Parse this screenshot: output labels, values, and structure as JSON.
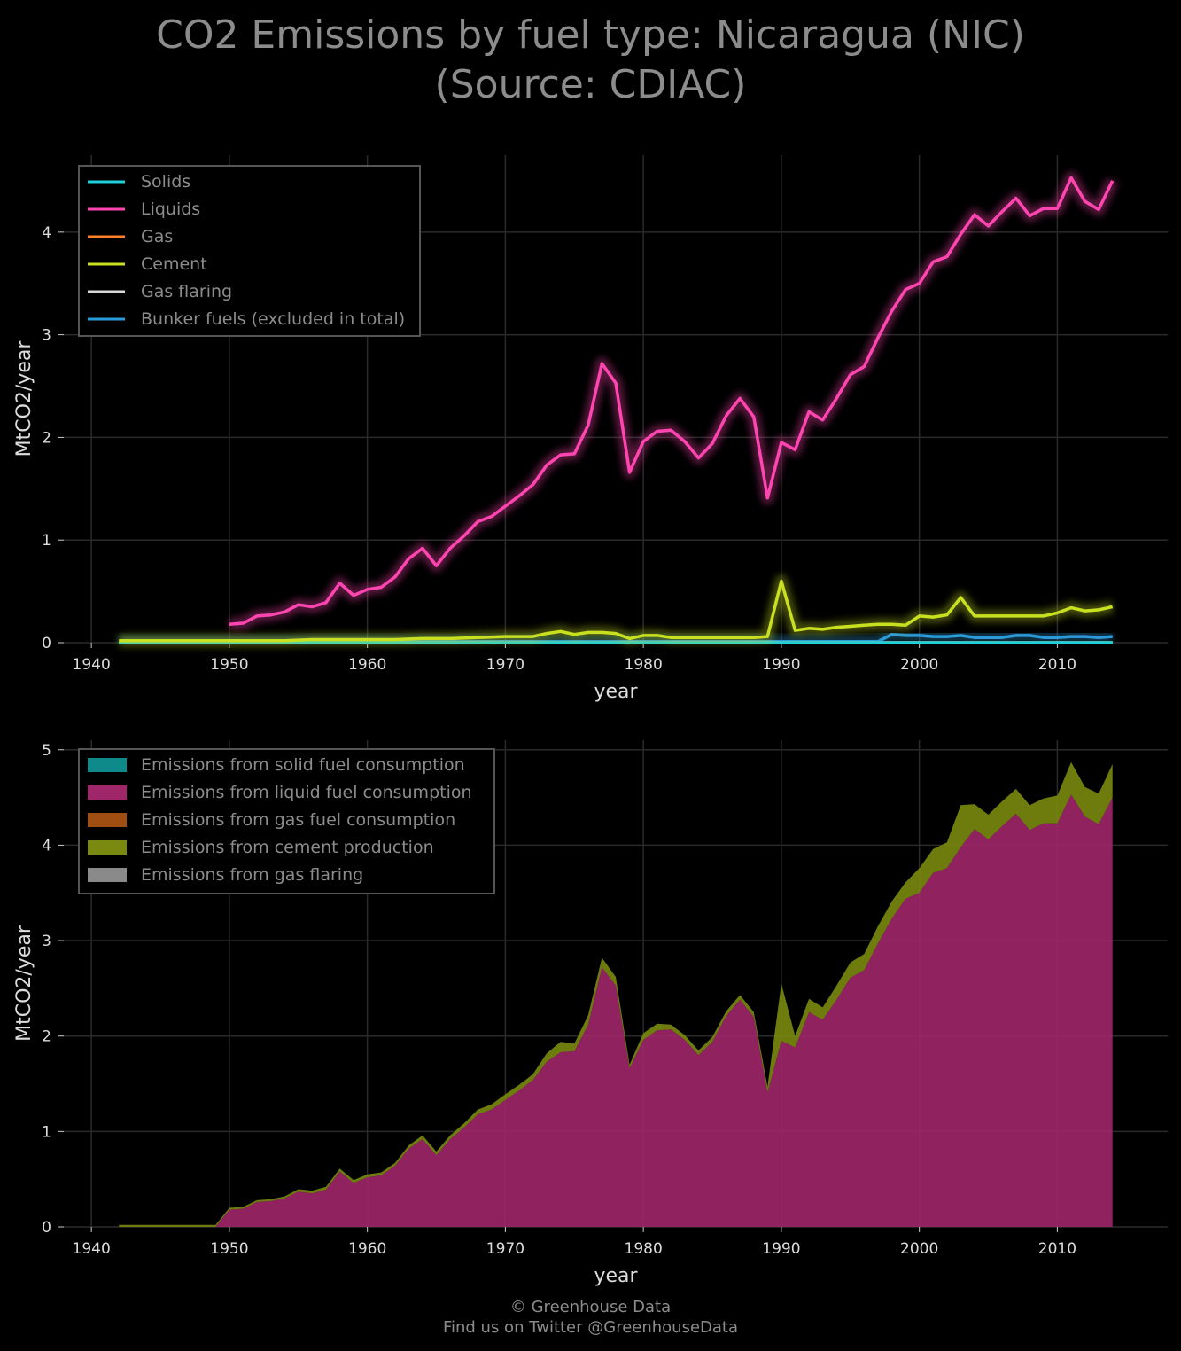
{
  "title": {
    "line1": "CO2 Emissions by fuel type: Nicaragua (NIC)",
    "line2": "(Source: CDIAC)"
  },
  "footer": {
    "line1": "© Greenhouse Data",
    "line2": "Find us on Twitter @GreenhouseData"
  },
  "colors": {
    "background": "#000000",
    "grid": "#2a2a2a",
    "solids": "#20d0d8",
    "liquids": "#ff45b0",
    "gas": "#ff7f2a",
    "cement": "#c8e020",
    "gas_flaring": "#d8d8d8",
    "bunker": "#2a9ad8",
    "area_solid": "#0e8a8a",
    "area_liquid": "#a0266a",
    "area_gas": "#a04e12",
    "area_cement": "#7a8a10",
    "area_flaring": "#8a8a8a"
  },
  "chart_data": [
    {
      "type": "line",
      "xlabel": "year",
      "ylabel": "MtCO2/year",
      "xlim": [
        1938,
        2018
      ],
      "ylim": [
        0,
        4.75
      ],
      "xticks": [
        1940,
        1950,
        1960,
        1970,
        1980,
        1990,
        2000,
        2010
      ],
      "yticks": [
        0,
        1,
        2,
        3,
        4
      ],
      "grid": true,
      "legend_position": "top-left",
      "series": [
        {
          "name": "Solids",
          "color_key": "solids",
          "x": [
            1942,
            1950,
            1960,
            1970,
            1980,
            1990,
            2000,
            2010,
            2014
          ],
          "values": [
            0.0,
            0.0,
            0.0,
            0.0,
            0.0,
            0.0,
            0.0,
            0.0,
            0.0
          ]
        },
        {
          "name": "Liquids",
          "color_key": "liquids",
          "x": [
            1950,
            1951,
            1952,
            1953,
            1954,
            1955,
            1956,
            1957,
            1958,
            1959,
            1960,
            1961,
            1962,
            1963,
            1964,
            1965,
            1966,
            1967,
            1968,
            1969,
            1970,
            1971,
            1972,
            1973,
            1974,
            1975,
            1976,
            1977,
            1978,
            1979,
            1980,
            1981,
            1982,
            1983,
            1984,
            1985,
            1986,
            1987,
            1988,
            1989,
            1990,
            1991,
            1992,
            1993,
            1994,
            1995,
            1996,
            1997,
            1998,
            1999,
            2000,
            2001,
            2002,
            2003,
            2004,
            2005,
            2006,
            2007,
            2008,
            2009,
            2010,
            2011,
            2012,
            2013,
            2014
          ],
          "values": [
            0.18,
            0.19,
            0.26,
            0.27,
            0.3,
            0.37,
            0.35,
            0.39,
            0.58,
            0.46,
            0.52,
            0.54,
            0.64,
            0.82,
            0.92,
            0.75,
            0.92,
            1.04,
            1.18,
            1.23,
            1.33,
            1.43,
            1.54,
            1.73,
            1.83,
            1.84,
            2.12,
            2.72,
            2.53,
            1.66,
            1.96,
            2.06,
            2.07,
            1.96,
            1.8,
            1.94,
            2.21,
            2.38,
            2.2,
            1.41,
            1.95,
            1.88,
            2.25,
            2.17,
            2.38,
            2.61,
            2.69,
            2.97,
            3.23,
            3.44,
            3.5,
            3.71,
            3.76,
            3.98,
            4.17,
            4.06,
            4.2,
            4.33,
            4.16,
            4.23,
            4.23,
            4.53,
            4.3,
            4.22,
            4.5
          ]
        },
        {
          "name": "Gas",
          "color_key": "gas",
          "x": [
            1942,
            1950,
            1960,
            1970,
            1980,
            1990,
            2000,
            2010,
            2014
          ],
          "values": [
            0.0,
            0.0,
            0.0,
            0.0,
            0.0,
            0.0,
            0.0,
            0.0,
            0.0
          ]
        },
        {
          "name": "Cement",
          "color_key": "cement",
          "x": [
            1942,
            1944,
            1946,
            1948,
            1950,
            1952,
            1954,
            1956,
            1958,
            1960,
            1962,
            1964,
            1966,
            1968,
            1970,
            1971,
            1972,
            1973,
            1974,
            1975,
            1976,
            1977,
            1978,
            1979,
            1980,
            1981,
            1982,
            1983,
            1984,
            1985,
            1986,
            1987,
            1988,
            1989,
            1990,
            1991,
            1992,
            1993,
            1994,
            1995,
            1996,
            1997,
            1998,
            1999,
            2000,
            2001,
            2002,
            2003,
            2004,
            2005,
            2006,
            2007,
            2008,
            2009,
            2010,
            2011,
            2012,
            2013,
            2014
          ],
          "values": [
            0.02,
            0.02,
            0.02,
            0.02,
            0.02,
            0.02,
            0.02,
            0.03,
            0.03,
            0.03,
            0.03,
            0.04,
            0.04,
            0.05,
            0.06,
            0.06,
            0.06,
            0.09,
            0.11,
            0.08,
            0.1,
            0.1,
            0.09,
            0.04,
            0.07,
            0.07,
            0.05,
            0.05,
            0.05,
            0.05,
            0.05,
            0.05,
            0.05,
            0.06,
            0.6,
            0.12,
            0.14,
            0.13,
            0.15,
            0.16,
            0.17,
            0.18,
            0.18,
            0.17,
            0.26,
            0.25,
            0.27,
            0.44,
            0.26,
            0.26,
            0.26,
            0.26,
            0.26,
            0.26,
            0.29,
            0.34,
            0.31,
            0.32,
            0.35
          ]
        },
        {
          "name": "Gas flaring",
          "color_key": "gas_flaring",
          "x": [
            1942,
            1950,
            1960,
            1970,
            1980,
            1990,
            2000,
            2010,
            2014
          ],
          "values": [
            0.0,
            0.0,
            0.0,
            0.0,
            0.0,
            0.0,
            0.0,
            0.0,
            0.0
          ]
        },
        {
          "name": "Bunker fuels (excluded in total)",
          "color_key": "bunker",
          "x": [
            1942,
            1950,
            1960,
            1970,
            1980,
            1990,
            1996,
            1997,
            1998,
            1999,
            2000,
            2001,
            2002,
            2003,
            2004,
            2005,
            2006,
            2007,
            2008,
            2009,
            2010,
            2011,
            2012,
            2013,
            2014
          ],
          "values": [
            0.01,
            0.01,
            0.01,
            0.01,
            0.01,
            0.01,
            0.01,
            0.01,
            0.08,
            0.07,
            0.07,
            0.06,
            0.06,
            0.07,
            0.05,
            0.05,
            0.05,
            0.07,
            0.07,
            0.05,
            0.05,
            0.06,
            0.06,
            0.05,
            0.06
          ]
        }
      ]
    },
    {
      "type": "area",
      "stacked": true,
      "xlabel": "year",
      "ylabel": "MtCO2/year",
      "xlim": [
        1938,
        2018
      ],
      "ylim": [
        0,
        5.1
      ],
      "xticks": [
        1940,
        1950,
        1960,
        1970,
        1980,
        1990,
        2000,
        2010
      ],
      "yticks": [
        0,
        1,
        2,
        3,
        4,
        5
      ],
      "grid": true,
      "legend_position": "top-left",
      "series": [
        {
          "name": "Emissions from solid fuel consumption",
          "color_key": "area_solid",
          "source": "Solids"
        },
        {
          "name": "Emissions from liquid fuel consumption",
          "color_key": "area_liquid",
          "source": "Liquids"
        },
        {
          "name": "Emissions from gas fuel consumption",
          "color_key": "area_gas",
          "source": "Gas"
        },
        {
          "name": "Emissions from cement production",
          "color_key": "area_cement",
          "source": "Cement"
        },
        {
          "name": "Emissions from gas flaring",
          "color_key": "area_flaring",
          "source": "Gas flaring"
        }
      ]
    }
  ]
}
